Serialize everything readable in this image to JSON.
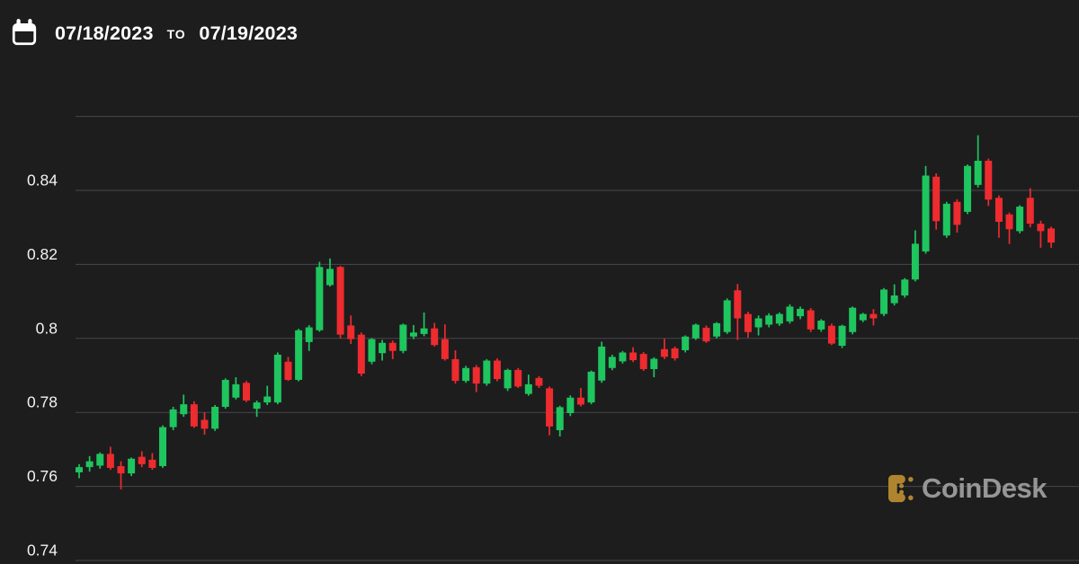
{
  "header": {
    "date_from": "07/18/2023",
    "separator": "TO",
    "date_to": "07/19/2023"
  },
  "watermark": {
    "text": "CoinDesk",
    "icon_color": "#b0842f",
    "text_color": "#969696"
  },
  "colors": {
    "background": "#1d1d1e",
    "grid": "#47474b",
    "axis_label": "#f2f2f2",
    "header_text": "#ffffff",
    "up": "#1fc55e",
    "down": "#ee2b2e"
  },
  "chart_data": {
    "type": "candlestick",
    "title": "",
    "date_range": {
      "from": "07/18/2023",
      "to": "07/19/2023"
    },
    "grid": true,
    "legend_position": "none",
    "y_axis": {
      "range": [
        0.738,
        0.862
      ],
      "ticks": [
        {
          "value": 0.86,
          "label": ""
        },
        {
          "value": 0.84,
          "label": "0.84"
        },
        {
          "value": 0.82,
          "label": "0.82"
        },
        {
          "value": 0.8,
          "label": "0.8"
        },
        {
          "value": 0.78,
          "label": "0.78"
        },
        {
          "value": 0.76,
          "label": "0.76"
        },
        {
          "value": 0.74,
          "label": "0.74"
        }
      ]
    },
    "up_color": "#1fc55e",
    "down_color": "#ee2b2e",
    "candles_ohlc": [
      [
        0.7638,
        0.766,
        0.7622,
        0.7652
      ],
      [
        0.7652,
        0.7682,
        0.764,
        0.7668
      ],
      [
        0.7656,
        0.7692,
        0.7648,
        0.7688
      ],
      [
        0.7688,
        0.7707,
        0.7645,
        0.765
      ],
      [
        0.7655,
        0.7668,
        0.7592,
        0.7635
      ],
      [
        0.7635,
        0.7678,
        0.7628,
        0.7675
      ],
      [
        0.768,
        0.7695,
        0.7652,
        0.766
      ],
      [
        0.7672,
        0.769,
        0.7645,
        0.765
      ],
      [
        0.7655,
        0.7765,
        0.765,
        0.776
      ],
      [
        0.776,
        0.7815,
        0.7752,
        0.7808
      ],
      [
        0.7795,
        0.7848,
        0.7788,
        0.7822
      ],
      [
        0.7822,
        0.783,
        0.7758,
        0.7762
      ],
      [
        0.778,
        0.78,
        0.774,
        0.7756
      ],
      [
        0.7756,
        0.782,
        0.775,
        0.7815
      ],
      [
        0.7815,
        0.7892,
        0.781,
        0.7888
      ],
      [
        0.784,
        0.7895,
        0.7835,
        0.7876
      ],
      [
        0.788,
        0.7885,
        0.7828,
        0.7832
      ],
      [
        0.781,
        0.7832,
        0.7788,
        0.7827
      ],
      [
        0.7827,
        0.7872,
        0.782,
        0.7843
      ],
      [
        0.7827,
        0.7962,
        0.7822,
        0.7956
      ],
      [
        0.7937,
        0.795,
        0.7885,
        0.7888
      ],
      [
        0.7888,
        0.8026,
        0.7884,
        0.8022
      ],
      [
        0.799,
        0.8036,
        0.7966,
        0.803
      ],
      [
        0.8022,
        0.8207,
        0.8018,
        0.8193
      ],
      [
        0.8144,
        0.8216,
        0.814,
        0.8188
      ],
      [
        0.8193,
        0.8196,
        0.8,
        0.801
      ],
      [
        0.8035,
        0.8062,
        0.7985,
        0.7998
      ],
      [
        0.801,
        0.8016,
        0.7898,
        0.7905
      ],
      [
        0.7937,
        0.8001,
        0.793,
        0.7998
      ],
      [
        0.796,
        0.7996,
        0.794,
        0.7988
      ],
      [
        0.7988,
        0.7994,
        0.7944,
        0.7966
      ],
      [
        0.7966,
        0.804,
        0.796,
        0.8037
      ],
      [
        0.8005,
        0.8036,
        0.7998,
        0.8016
      ],
      [
        0.8012,
        0.807,
        0.8006,
        0.8027
      ],
      [
        0.8027,
        0.8042,
        0.7978,
        0.7982
      ],
      [
        0.7998,
        0.8038,
        0.794,
        0.7944
      ],
      [
        0.7944,
        0.7968,
        0.7878,
        0.7885
      ],
      [
        0.7885,
        0.7926,
        0.788,
        0.792
      ],
      [
        0.7922,
        0.7928,
        0.7855,
        0.7878
      ],
      [
        0.7878,
        0.7944,
        0.7872,
        0.794
      ],
      [
        0.794,
        0.7946,
        0.7884,
        0.789
      ],
      [
        0.7865,
        0.7918,
        0.7858,
        0.7915
      ],
      [
        0.7915,
        0.792,
        0.7866,
        0.787
      ],
      [
        0.785,
        0.7902,
        0.7845,
        0.7876
      ],
      [
        0.7893,
        0.7898,
        0.7866,
        0.7872
      ],
      [
        0.7865,
        0.787,
        0.7738,
        0.7762
      ],
      [
        0.7752,
        0.7818,
        0.7735,
        0.7814
      ],
      [
        0.7798,
        0.7846,
        0.779,
        0.784
      ],
      [
        0.784,
        0.7866,
        0.7816,
        0.7821
      ],
      [
        0.7827,
        0.7913,
        0.7822,
        0.791
      ],
      [
        0.7886,
        0.7991,
        0.788,
        0.7978
      ],
      [
        0.792,
        0.7956,
        0.7914,
        0.795
      ],
      [
        0.7938,
        0.7966,
        0.7932,
        0.7962
      ],
      [
        0.7962,
        0.7976,
        0.7936,
        0.7941
      ],
      [
        0.7958,
        0.7963,
        0.7912,
        0.7917
      ],
      [
        0.7917,
        0.7949,
        0.7895,
        0.7945
      ],
      [
        0.7971,
        0.7999,
        0.7944,
        0.795
      ],
      [
        0.7973,
        0.7978,
        0.794,
        0.7946
      ],
      [
        0.7968,
        0.8008,
        0.7962,
        0.8005
      ],
      [
        0.8,
        0.804,
        0.7996,
        0.8037
      ],
      [
        0.8029,
        0.8035,
        0.7988,
        0.7992
      ],
      [
        0.8005,
        0.8044,
        0.8,
        0.8041
      ],
      [
        0.8017,
        0.8108,
        0.8012,
        0.8103
      ],
      [
        0.813,
        0.8147,
        0.7996,
        0.8054
      ],
      [
        0.8066,
        0.8072,
        0.8002,
        0.8017
      ],
      [
        0.803,
        0.8062,
        0.8008,
        0.8054
      ],
      [
        0.8037,
        0.8068,
        0.803,
        0.8062
      ],
      [
        0.804,
        0.807,
        0.8034,
        0.8066
      ],
      [
        0.8046,
        0.8092,
        0.804,
        0.8086
      ],
      [
        0.806,
        0.8086,
        0.8052,
        0.808
      ],
      [
        0.8076,
        0.8082,
        0.8017,
        0.8024
      ],
      [
        0.8024,
        0.8052,
        0.8018,
        0.8048
      ],
      [
        0.8034,
        0.804,
        0.7982,
        0.7986
      ],
      [
        0.798,
        0.8037,
        0.7974,
        0.8034
      ],
      [
        0.8017,
        0.8086,
        0.8011,
        0.8083
      ],
      [
        0.8049,
        0.8069,
        0.8044,
        0.8066
      ],
      [
        0.8066,
        0.8079,
        0.8035,
        0.8054
      ],
      [
        0.8066,
        0.8136,
        0.806,
        0.8132
      ],
      [
        0.8095,
        0.8146,
        0.8089,
        0.8116
      ],
      [
        0.8116,
        0.8163,
        0.811,
        0.8159
      ],
      [
        0.8159,
        0.8292,
        0.8154,
        0.8256
      ],
      [
        0.8235,
        0.8466,
        0.8229,
        0.844
      ],
      [
        0.8437,
        0.8446,
        0.8294,
        0.8317
      ],
      [
        0.8278,
        0.8369,
        0.8272,
        0.8364
      ],
      [
        0.8369,
        0.8376,
        0.8286,
        0.8307
      ],
      [
        0.8342,
        0.847,
        0.8336,
        0.8466
      ],
      [
        0.8415,
        0.8549,
        0.8408,
        0.848
      ],
      [
        0.848,
        0.8486,
        0.8358,
        0.8375
      ],
      [
        0.838,
        0.8386,
        0.8272,
        0.8315
      ],
      [
        0.8335,
        0.834,
        0.8255,
        0.8295
      ],
      [
        0.829,
        0.836,
        0.8284,
        0.8356
      ],
      [
        0.838,
        0.8406,
        0.83,
        0.831
      ],
      [
        0.831,
        0.8318,
        0.8245,
        0.829
      ],
      [
        0.8297,
        0.8302,
        0.8245,
        0.8259
      ]
    ]
  }
}
